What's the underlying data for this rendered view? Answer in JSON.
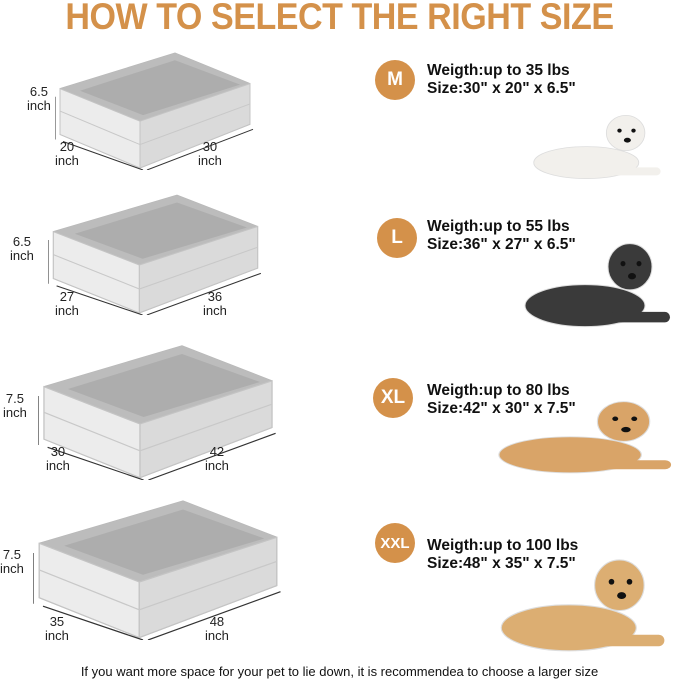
{
  "title": "HOW TO SELECT THE RIGHT SIZE",
  "accent_color": "#d4914a",
  "sizes": [
    {
      "badge": "M",
      "weight": "Weigth:up to 35 lbs",
      "size": "Size:30\" x 20\" x 6.5\"",
      "height": "6.5",
      "depth": "20",
      "length": "30",
      "unit": "inch",
      "dog": "white-poodle"
    },
    {
      "badge": "L",
      "weight": "Weigth:up to 55 lbs",
      "size": "Size:36\" x 27\" x 6.5\"",
      "height": "6.5",
      "depth": "27",
      "length": "36",
      "unit": "inch",
      "dog": "husky"
    },
    {
      "badge": "XL",
      "weight": "Weigth:up to 80 lbs",
      "size": "Size:42\" x 30\" x 7.5\"",
      "height": "7.5",
      "depth": "30",
      "length": "42",
      "unit": "inch",
      "dog": "golden-retriever"
    },
    {
      "badge": "XXL",
      "weight": "Weigth:up to 100 lbs",
      "size": "Size:48\" x 35\" x 7.5\"",
      "height": "7.5",
      "depth": "35",
      "length": "48",
      "unit": "inch",
      "dog": "labrador"
    }
  ],
  "footer": "If you want more space for your pet to lie down, it is recommendea to choose a larger size"
}
